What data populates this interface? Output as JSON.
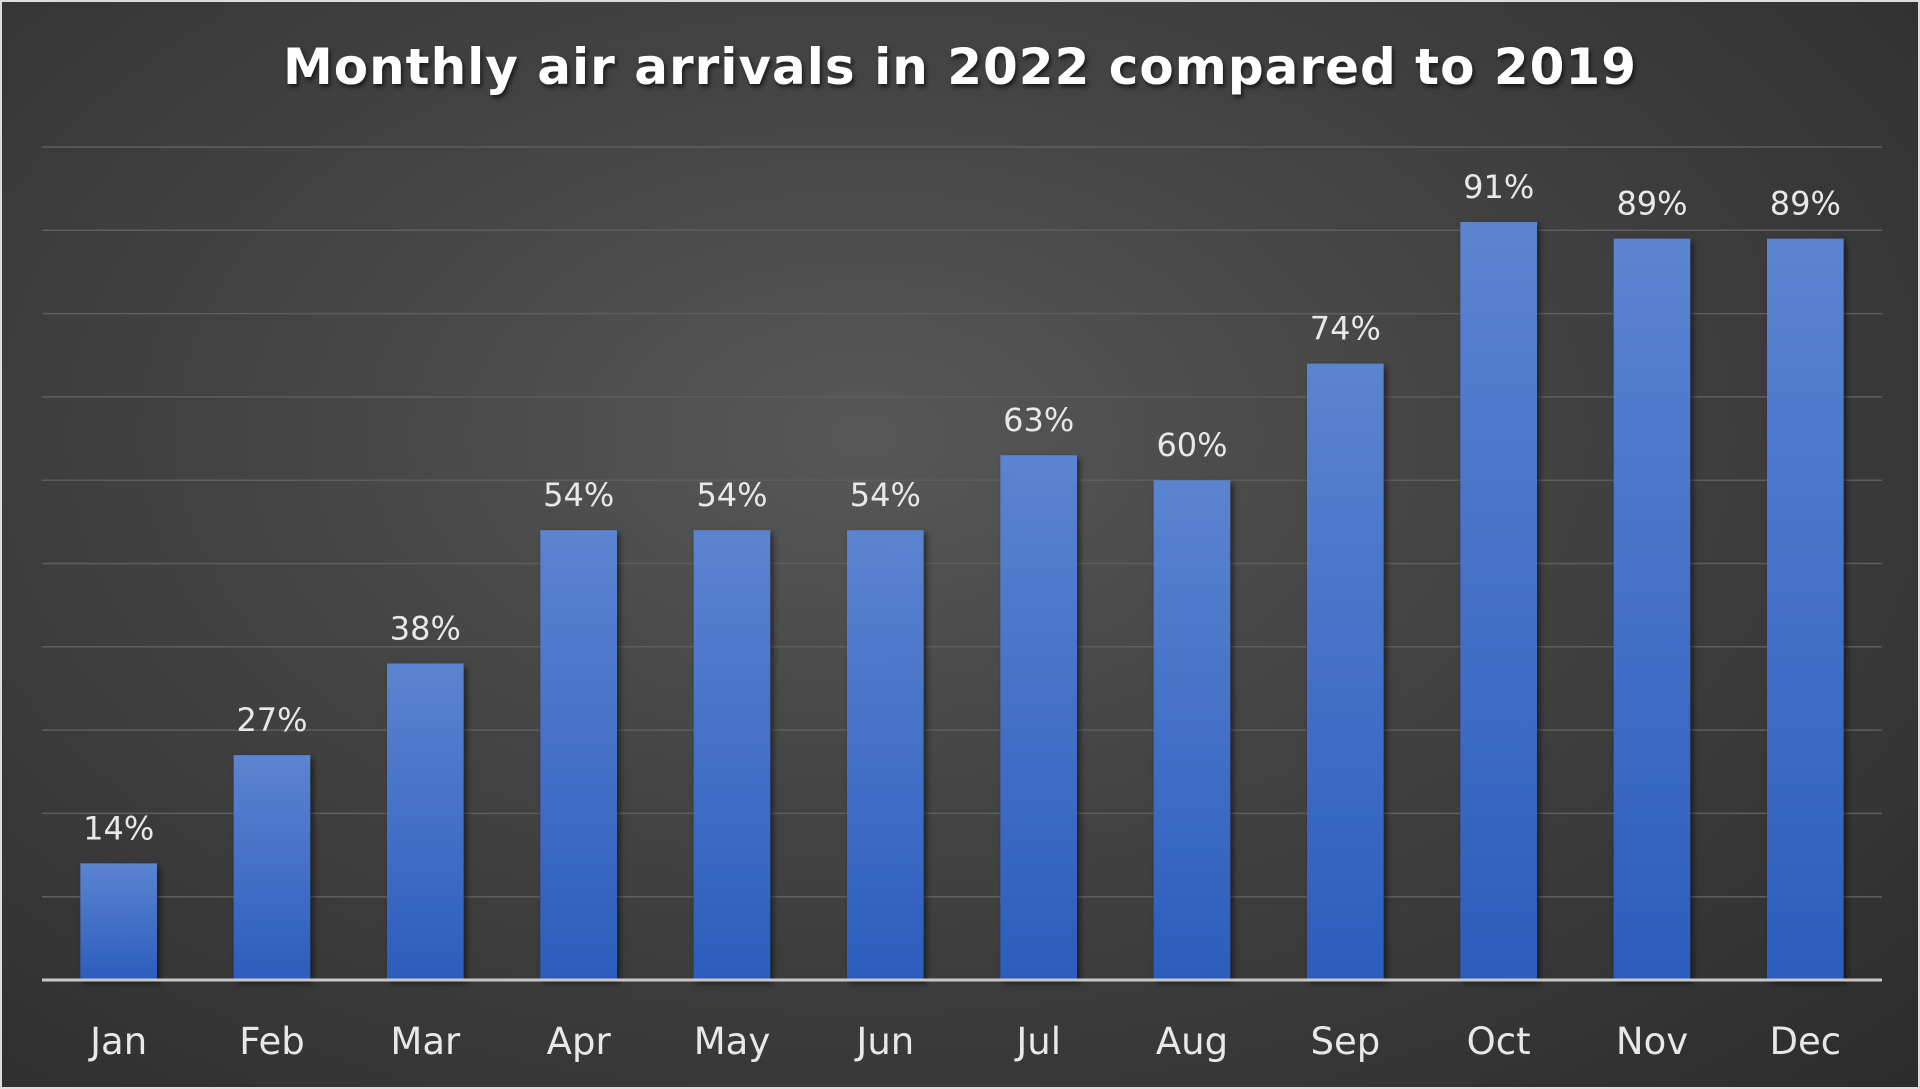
{
  "chart_data": {
    "type": "bar",
    "title": "Monthly air arrivals in 2022 compared to 2019",
    "categories": [
      "Jan",
      "Feb",
      "Mar",
      "Apr",
      "May",
      "Jun",
      "Jul",
      "Aug",
      "Sep",
      "Oct",
      "Nov",
      "Dec"
    ],
    "values": [
      14,
      27,
      38,
      54,
      54,
      54,
      63,
      60,
      74,
      91,
      89,
      89
    ],
    "data_labels": [
      "14%",
      "27%",
      "38%",
      "54%",
      "54%",
      "54%",
      "63%",
      "60%",
      "74%",
      "91%",
      "89%",
      "89%"
    ],
    "xlabel": "",
    "ylabel": "",
    "ylim": [
      0,
      100
    ],
    "grid": true,
    "grid_step": 10,
    "y_axis_labels_shown": false,
    "legend": "none",
    "colors": {
      "bar_top": "#5b84d0",
      "bar_bottom": "#2c5dbd",
      "background": "#3c3c3c",
      "text": "#ffffff"
    }
  }
}
